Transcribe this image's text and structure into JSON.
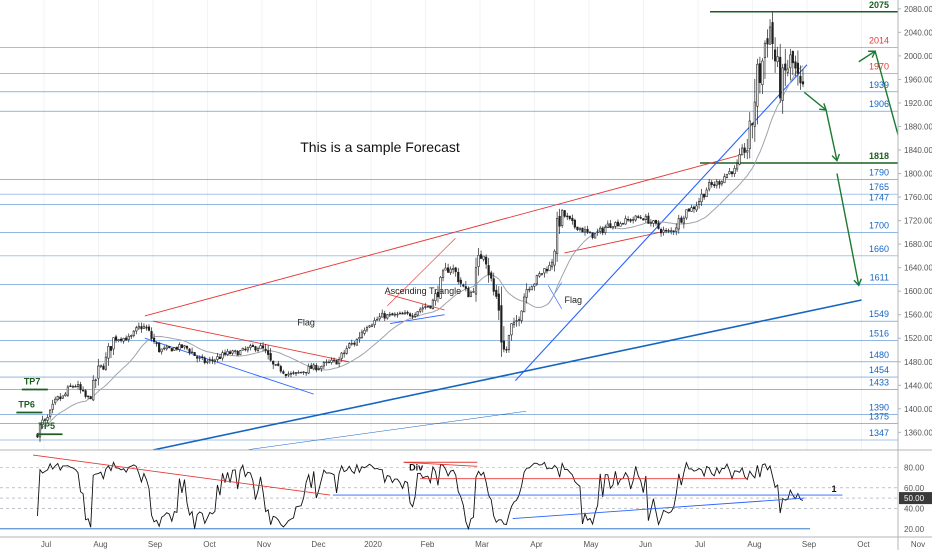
{
  "chart_data": {
    "type": "candlestick",
    "title": "This is a sample Forecast",
    "instrument_note": "",
    "price_axis": {
      "ylim": [
        1330,
        2095
      ],
      "ticks": [
        2080,
        2040,
        2000,
        1960,
        1920,
        1880,
        1840,
        1800,
        1760,
        1720,
        1680,
        1640,
        1600,
        1560,
        1520,
        1480,
        1440,
        1400,
        1360
      ]
    },
    "oscillator_axis": {
      "ylim": [
        12,
        96
      ],
      "ticks": [
        80,
        60,
        40,
        20
      ],
      "current_value_label": "50.00",
      "current_value": 50
    },
    "time_axis": {
      "labels": [
        "Jul",
        "Aug",
        "Sep",
        "Oct",
        "Nov",
        "Dec",
        "2020",
        "Feb",
        "Mar",
        "Apr",
        "May",
        "Jun",
        "Jul",
        "Aug",
        "Sep",
        "Oct",
        "Nov"
      ],
      "months": [
        0,
        1,
        2,
        3,
        4,
        5,
        6,
        7,
        8,
        9,
        10,
        11,
        12,
        13,
        14,
        15,
        16
      ]
    },
    "support_resistance_levels": [
      {
        "label": "2075",
        "value": 2075,
        "color": "#1b5e20",
        "weight": "major"
      },
      {
        "label": "2014",
        "value": 2014,
        "color": "#e53935",
        "weight": "minor"
      },
      {
        "label": "1970",
        "value": 1970,
        "color": "#e53935",
        "weight": "minor"
      },
      {
        "label": "1939",
        "value": 1939,
        "color": "#1565c0",
        "weight": "minor"
      },
      {
        "label": "1906",
        "value": 1906,
        "color": "#1565c0",
        "weight": "minor"
      },
      {
        "label": "1818",
        "value": 1818,
        "color": "#1b5e20",
        "weight": "major"
      },
      {
        "label": "1790",
        "value": 1790,
        "color": "#1565c0",
        "weight": "minor"
      },
      {
        "label": "1765",
        "value": 1765,
        "color": "#1565c0",
        "weight": "minor"
      },
      {
        "label": "1747",
        "value": 1747,
        "color": "#1565c0",
        "weight": "minor"
      },
      {
        "label": "1700",
        "value": 1700,
        "color": "#1565c0",
        "weight": "minor"
      },
      {
        "label": "1660",
        "value": 1660,
        "color": "#1565c0",
        "weight": "minor"
      },
      {
        "label": "1611",
        "value": 1611,
        "color": "#1565c0",
        "weight": "minor"
      },
      {
        "label": "1549",
        "value": 1549,
        "color": "#1565c0",
        "weight": "minor"
      },
      {
        "label": "1516",
        "value": 1516,
        "color": "#1565c0",
        "weight": "minor"
      },
      {
        "label": "1480",
        "value": 1480,
        "color": "#1565c0",
        "weight": "minor"
      },
      {
        "label": "1454",
        "value": 1454,
        "color": "#1565c0",
        "weight": "minor"
      },
      {
        "label": "1433",
        "value": 1433,
        "color": "#1565c0",
        "weight": "minor"
      },
      {
        "label": "1390",
        "value": 1390,
        "color": "#1565c0",
        "weight": "minor"
      },
      {
        "label": "1375",
        "value": 1375,
        "color": "#1565c0",
        "weight": "minor"
      },
      {
        "label": "1347",
        "value": 1347,
        "color": "#1565c0",
        "weight": "minor"
      }
    ],
    "price_path_anchors": [
      {
        "t": -0.12,
        "p": 1355
      },
      {
        "t": 0.05,
        "p": 1378
      },
      {
        "t": 0.35,
        "p": 1418
      },
      {
        "t": 0.6,
        "p": 1440
      },
      {
        "t": 0.85,
        "p": 1418
      },
      {
        "t": 1.1,
        "p": 1470
      },
      {
        "t": 1.35,
        "p": 1520
      },
      {
        "t": 1.6,
        "p": 1520
      },
      {
        "t": 1.85,
        "p": 1540
      },
      {
        "t": 2.2,
        "p": 1500
      },
      {
        "t": 2.6,
        "p": 1505
      },
      {
        "t": 3.0,
        "p": 1480
      },
      {
        "t": 3.5,
        "p": 1495
      },
      {
        "t": 4.0,
        "p": 1505
      },
      {
        "t": 4.3,
        "p": 1470
      },
      {
        "t": 4.6,
        "p": 1458
      },
      {
        "t": 5.0,
        "p": 1470
      },
      {
        "t": 5.4,
        "p": 1480
      },
      {
        "t": 5.7,
        "p": 1510
      },
      {
        "t": 6.0,
        "p": 1545
      },
      {
        "t": 6.3,
        "p": 1558
      },
      {
        "t": 6.7,
        "p": 1560
      },
      {
        "t": 7.1,
        "p": 1575
      },
      {
        "t": 7.5,
        "p": 1640
      },
      {
        "t": 7.85,
        "p": 1595
      },
      {
        "t": 8.1,
        "p": 1665
      },
      {
        "t": 8.35,
        "p": 1590
      },
      {
        "t": 8.5,
        "p": 1495
      },
      {
        "t": 8.65,
        "p": 1540
      },
      {
        "t": 8.95,
        "p": 1610
      },
      {
        "t": 9.3,
        "p": 1640
      },
      {
        "t": 9.55,
        "p": 1730
      },
      {
        "t": 9.8,
        "p": 1710
      },
      {
        "t": 10.1,
        "p": 1695
      },
      {
        "t": 10.5,
        "p": 1715
      },
      {
        "t": 11.0,
        "p": 1725
      },
      {
        "t": 11.5,
        "p": 1700
      },
      {
        "t": 11.9,
        "p": 1740
      },
      {
        "t": 12.3,
        "p": 1780
      },
      {
        "t": 12.7,
        "p": 1805
      },
      {
        "t": 12.95,
        "p": 1845
      },
      {
        "t": 13.15,
        "p": 1960
      },
      {
        "t": 13.35,
        "p": 2050
      },
      {
        "t": 13.55,
        "p": 1950
      },
      {
        "t": 13.75,
        "p": 1990
      },
      {
        "t": 13.95,
        "p": 1935
      }
    ],
    "series": [
      {
        "name": "",
        "type": "moving_average",
        "color": "#9e9e9e"
      },
      {
        "name": "",
        "type": "oscillator",
        "color": "#000000"
      }
    ],
    "annotations": {
      "tp_labels": [
        {
          "text": "TP7",
          "t": -0.15,
          "p": 1443
        },
        {
          "text": "TP6",
          "t": -0.25,
          "p": 1404
        },
        {
          "text": "TP5",
          "t": 0.12,
          "p": 1367
        }
      ],
      "pattern_labels": [
        {
          "text": "Ascending Triangle",
          "t": 6.25,
          "p": 1595
        },
        {
          "text": "Flag",
          "t": 4.65,
          "p": 1542
        },
        {
          "text": "Flag",
          "t": 9.55,
          "p": 1580
        }
      ],
      "oscillator_labels": [
        {
          "text": "Div",
          "t": 6.7,
          "v": 77
        },
        {
          "text": "1",
          "t": 14.45,
          "v": 56
        }
      ]
    }
  }
}
